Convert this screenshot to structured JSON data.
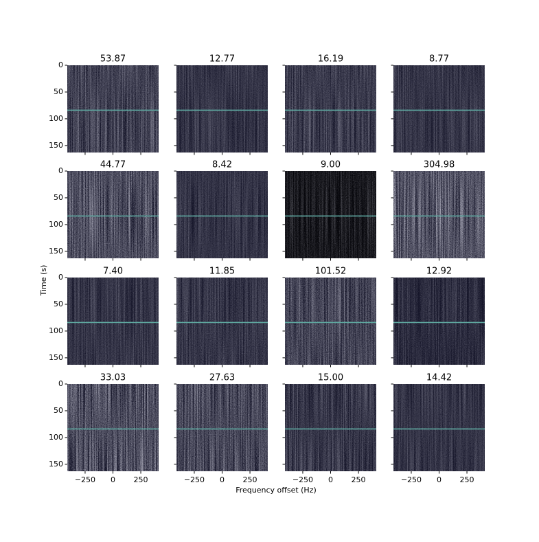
{
  "chart_data": {
    "type": "image-grid",
    "xlabel": "Frequency offset (Hz)",
    "ylabel": "Time (s)",
    "xlim": [
      -410,
      410
    ],
    "ylim": [
      163,
      0
    ],
    "xticks": [
      {
        "value": -250,
        "label": "−250"
      },
      0,
      250
    ],
    "yticks": [
      0,
      50,
      100,
      150
    ],
    "hline": 84,
    "hline_color": "#5fa8a0",
    "panels": [
      {
        "title": "53.87"
      },
      {
        "title": "12.77"
      },
      {
        "title": "16.19"
      },
      {
        "title": "8.77"
      },
      {
        "title": "44.77"
      },
      {
        "title": "8.42"
      },
      {
        "title": "9.00"
      },
      {
        "title": "304.98"
      },
      {
        "title": "7.40"
      },
      {
        "title": "11.85"
      },
      {
        "title": "101.52"
      },
      {
        "title": "12.92"
      },
      {
        "title": "33.03"
      },
      {
        "title": "27.63"
      },
      {
        "title": "15.00"
      },
      {
        "title": "14.42"
      }
    ]
  }
}
